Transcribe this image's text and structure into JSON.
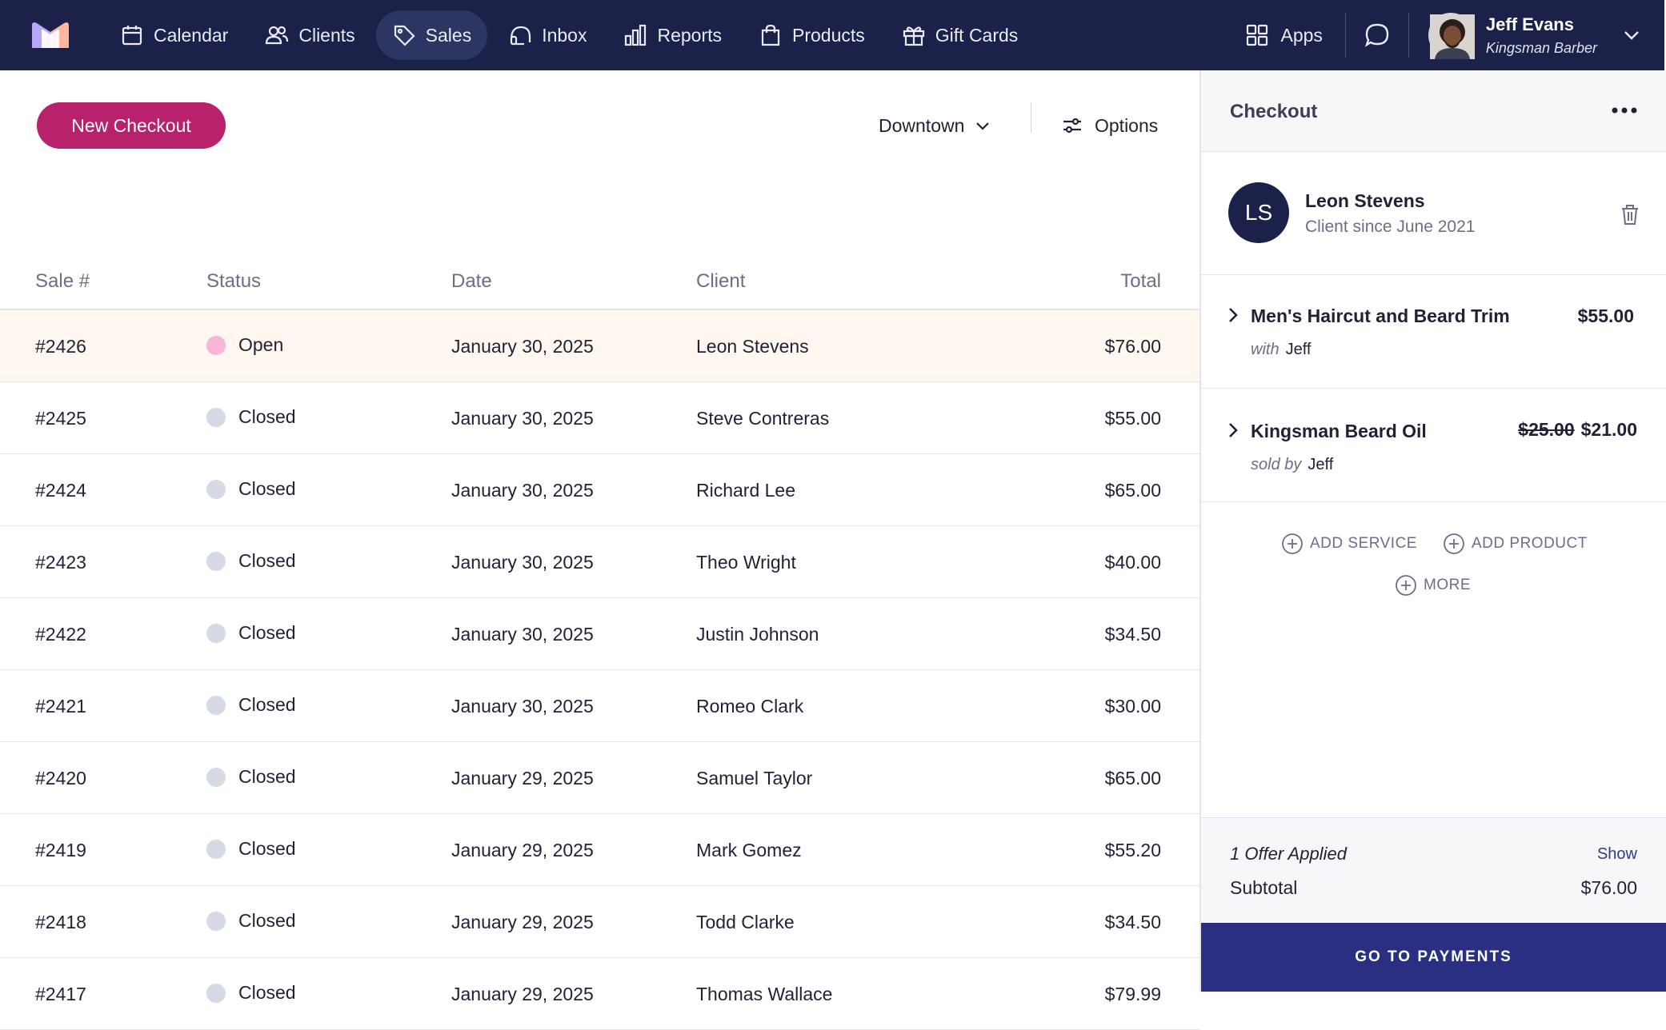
{
  "nav": {
    "items": [
      {
        "label": "Calendar",
        "icon": "calendar-icon"
      },
      {
        "label": "Clients",
        "icon": "users-icon"
      },
      {
        "label": "Sales",
        "icon": "tag-icon"
      },
      {
        "label": "Inbox",
        "icon": "headset-icon"
      },
      {
        "label": "Reports",
        "icon": "bar-chart-icon"
      },
      {
        "label": "Products",
        "icon": "bag-icon"
      },
      {
        "label": "Gift Cards",
        "icon": "gift-icon"
      }
    ],
    "active": "Sales",
    "apps_label": "Apps",
    "user": {
      "name": "Jeff Evans",
      "business": "Kingsman Barber"
    }
  },
  "toolbar": {
    "new_checkout_label": "New Checkout",
    "location_label": "Downtown",
    "options_label": "Options"
  },
  "table": {
    "headers": {
      "sale": "Sale #",
      "status": "Status",
      "date": "Date",
      "client": "Client",
      "total": "Total"
    },
    "rows": [
      {
        "sale": "#2426",
        "status": "Open",
        "date": "January 30, 2025",
        "client": "Leon Stevens",
        "total": "$76.00"
      },
      {
        "sale": "#2425",
        "status": "Closed",
        "date": "January 30, 2025",
        "client": "Steve Contreras",
        "total": "$55.00"
      },
      {
        "sale": "#2424",
        "status": "Closed",
        "date": "January 30, 2025",
        "client": "Richard Lee",
        "total": "$65.00"
      },
      {
        "sale": "#2423",
        "status": "Closed",
        "date": "January 30, 2025",
        "client": "Theo Wright",
        "total": "$40.00"
      },
      {
        "sale": "#2422",
        "status": "Closed",
        "date": "January 30, 2025",
        "client": "Justin Johnson",
        "total": "$34.50"
      },
      {
        "sale": "#2421",
        "status": "Closed",
        "date": "January 30, 2025",
        "client": "Romeo Clark",
        "total": "$30.00"
      },
      {
        "sale": "#2420",
        "status": "Closed",
        "date": "January 29, 2025",
        "client": "Samuel Taylor",
        "total": "$65.00"
      },
      {
        "sale": "#2419",
        "status": "Closed",
        "date": "January 29, 2025",
        "client": "Mark Gomez",
        "total": "$55.20"
      },
      {
        "sale": "#2418",
        "status": "Closed",
        "date": "January 29, 2025",
        "client": "Todd Clarke",
        "total": "$34.50"
      },
      {
        "sale": "#2417",
        "status": "Closed",
        "date": "January 29, 2025",
        "client": "Thomas Wallace",
        "total": "$79.99"
      }
    ]
  },
  "checkout": {
    "title": "Checkout",
    "client": {
      "initials": "LS",
      "name": "Leon Stevens",
      "since": "Client since June 2021"
    },
    "items": [
      {
        "name": "Men's Haircut and Beard Trim",
        "price": "$55.00",
        "old_price": "",
        "by_label": "with",
        "staff": "Jeff"
      },
      {
        "name": "Kingsman Beard Oil",
        "price": "$21.00",
        "old_price": "$25.00",
        "by_label": "sold by",
        "staff": "Jeff"
      }
    ],
    "add_service_label": "ADD SERVICE",
    "add_product_label": "ADD PRODUCT",
    "more_label": "MORE",
    "offer_label": "1 Offer Applied",
    "show_label": "Show",
    "subtotal_label": "Subtotal",
    "subtotal_value": "$76.00",
    "pay_label": "GO TO PAYMENTS"
  },
  "colors": {
    "nav_bg": "#1b2148",
    "accent": "#b8216b",
    "pay_button": "#2b2f82",
    "open_row": "#fff7f0",
    "open_dot": "#f6b7d7",
    "closed_dot": "#d6d9e6"
  }
}
